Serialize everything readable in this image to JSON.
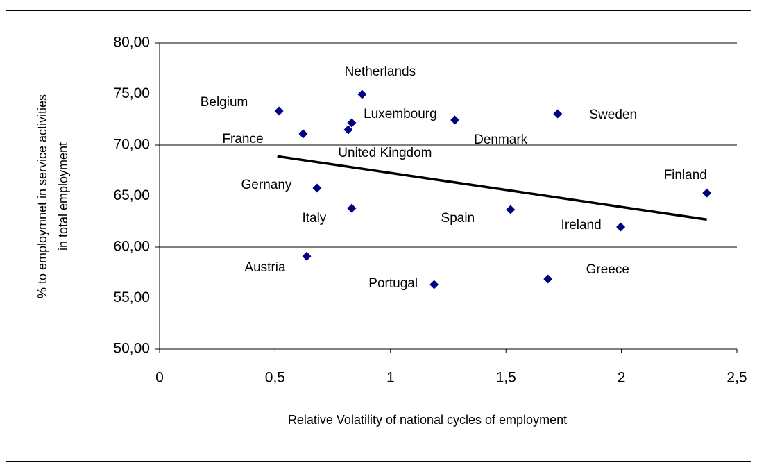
{
  "chart_data": {
    "type": "scatter",
    "xlabel": "Relative Volatility  of  national cycles of employment",
    "ylabel": [
      "% to employmnet in service activities",
      "in total employment"
    ],
    "x": [
      0.517,
      0.877,
      0.832,
      0.817,
      0.622,
      1.279,
      1.724,
      2.37,
      0.682,
      0.832,
      1.52,
      1.997,
      0.637,
      1.189,
      1.682
    ],
    "values": [
      73.33,
      74.97,
      72.18,
      71.5,
      71.1,
      72.45,
      73.06,
      65.3,
      65.78,
      63.8,
      63.67,
      61.97,
      59.1,
      56.33,
      56.87
    ],
    "point_labels": [
      "Belgium",
      "Netherlands",
      "Luxembourg",
      "United Kingdom",
      "France",
      "Denmark",
      "Sweden",
      "Finland",
      "Gernany",
      "Italy",
      "Spain",
      "Ireland",
      "Austria",
      "Portugal",
      "Greece"
    ],
    "color": "#000080",
    "trendline": {
      "x": [
        0.51,
        2.37
      ],
      "values": [
        68.9,
        62.7
      ],
      "color": "#000000"
    },
    "xlim": [
      0,
      2.5
    ],
    "xticks": [
      0,
      {
        "value": 0.5,
        "label": "0,5"
      },
      1,
      {
        "value": 1.5,
        "label": "1,5"
      },
      2,
      {
        "value": 2.5,
        "label": "2,5"
      }
    ],
    "ylim": [
      50,
      80
    ],
    "yticks": [
      {
        "value": 50,
        "label": "50,00"
      },
      {
        "value": 55,
        "label": "55,00"
      },
      {
        "value": 60,
        "label": "60,00"
      },
      {
        "value": 65,
        "label": "65,00"
      },
      {
        "value": 70,
        "label": "70,00"
      },
      {
        "value": 75,
        "label": "75,00"
      },
      {
        "value": 80,
        "label": "80,00"
      }
    ],
    "grid": true
  }
}
